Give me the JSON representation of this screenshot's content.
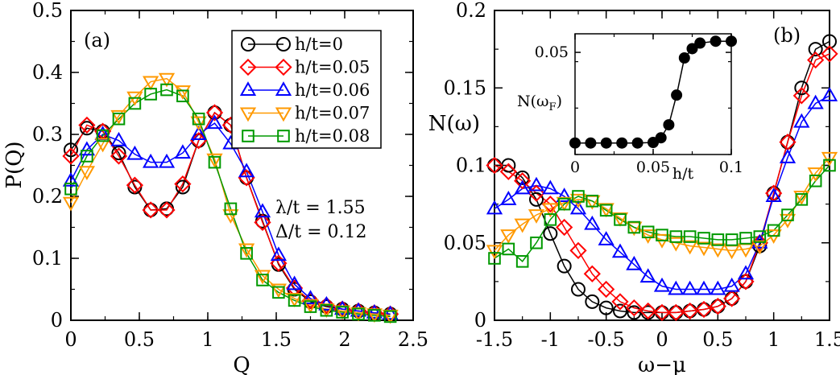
{
  "chart_data": [
    {
      "type": "line",
      "panel_label": "(a)",
      "xlabel": "Q",
      "ylabel": "P(Q)",
      "xlim": [
        0,
        2.5
      ],
      "ylim": [
        0,
        0.5
      ],
      "xticks": [
        "0",
        "0.5",
        "1",
        "1.5",
        "2",
        "2.5"
      ],
      "yticks": [
        "0",
        "0.1",
        "0.2",
        "0.3",
        "0.4",
        "0.5"
      ],
      "legend_position": "top-right",
      "annotations": [
        "λ/t = 1.55",
        "Δ/t = 0.12"
      ],
      "x": [
        0,
        0.117,
        0.233,
        0.35,
        0.467,
        0.583,
        0.7,
        0.817,
        0.933,
        1.05,
        1.167,
        1.283,
        1.4,
        1.517,
        1.633,
        1.75,
        1.867,
        1.983,
        2.1,
        2.217,
        2.333
      ],
      "series": [
        {
          "name": "h/t=0",
          "color": "#000000",
          "marker": "circle",
          "values": [
            0.275,
            0.31,
            0.305,
            0.27,
            0.215,
            0.178,
            0.18,
            0.215,
            0.29,
            0.335,
            0.315,
            0.23,
            0.16,
            0.09,
            0.05,
            0.03,
            0.022,
            0.018,
            0.015,
            0.012,
            0.01
          ]
        },
        {
          "name": "h/t=0.05",
          "color": "#ff0000",
          "marker": "diamond",
          "values": [
            0.265,
            0.315,
            0.305,
            0.265,
            0.218,
            0.178,
            0.178,
            0.22,
            0.29,
            0.335,
            0.315,
            0.23,
            0.158,
            0.092,
            0.052,
            0.032,
            0.024,
            0.018,
            0.015,
            0.012,
            0.01
          ]
        },
        {
          "name": "h/t=0.06",
          "color": "#0000ff",
          "marker": "triangle-up",
          "values": [
            0.225,
            0.275,
            0.3,
            0.29,
            0.268,
            0.255,
            0.255,
            0.27,
            0.3,
            0.318,
            0.285,
            0.24,
            0.175,
            0.105,
            0.058,
            0.035,
            0.025,
            0.018,
            0.015,
            0.012,
            0.01
          ]
        },
        {
          "name": "h/t=0.07",
          "color": "#ff9900",
          "marker": "triangle-down",
          "values": [
            0.19,
            0.24,
            0.285,
            0.33,
            0.36,
            0.385,
            0.39,
            0.37,
            0.32,
            0.26,
            0.17,
            0.115,
            0.072,
            0.05,
            0.035,
            0.025,
            0.018,
            0.015,
            0.012,
            0.01,
            0.008
          ]
        },
        {
          "name": "h/t=0.08",
          "color": "#009900",
          "marker": "square",
          "values": [
            0.212,
            0.265,
            0.298,
            0.325,
            0.35,
            0.365,
            0.372,
            0.362,
            0.325,
            0.255,
            0.18,
            0.108,
            0.065,
            0.045,
            0.032,
            0.022,
            0.016,
            0.013,
            0.01,
            0.008,
            0.006
          ]
        }
      ]
    },
    {
      "type": "line",
      "panel_label": "(b)",
      "xlabel": "ω−μ",
      "ylabel": "N(ω)",
      "xlim": [
        -1.5,
        1.5
      ],
      "ylim": [
        0,
        0.2
      ],
      "xticks": [
        "-1.5",
        "-1",
        "-0.5",
        "0",
        "0.5",
        "1",
        "1.5"
      ],
      "yticks": [
        "0",
        "0.05",
        "0.1",
        "0.15",
        "0.2"
      ],
      "x": [
        -1.5,
        -1.375,
        -1.25,
        -1.125,
        -1.0,
        -0.875,
        -0.75,
        -0.625,
        -0.5,
        -0.375,
        -0.25,
        -0.125,
        0,
        0.125,
        0.25,
        0.375,
        0.5,
        0.625,
        0.75,
        0.875,
        1.0,
        1.125,
        1.25,
        1.375,
        1.5
      ],
      "series": [
        {
          "name": "h/t=0",
          "color": "#000000",
          "marker": "circle",
          "values": [
            0.1,
            0.1,
            0.092,
            0.078,
            0.056,
            0.035,
            0.02,
            0.012,
            0.008,
            0.006,
            0.005,
            0.005,
            0.005,
            0.005,
            0.006,
            0.007,
            0.009,
            0.014,
            0.025,
            0.048,
            0.082,
            0.115,
            0.15,
            0.175,
            0.18
          ]
        },
        {
          "name": "h/t=0.05",
          "color": "#ff0000",
          "marker": "diamond",
          "values": [
            0.1,
            0.096,
            0.09,
            0.082,
            0.075,
            0.06,
            0.045,
            0.03,
            0.02,
            0.012,
            0.008,
            0.006,
            0.005,
            0.005,
            0.006,
            0.007,
            0.009,
            0.014,
            0.025,
            0.05,
            0.082,
            0.115,
            0.145,
            0.168,
            0.172
          ]
        },
        {
          "name": "h/t=0.06",
          "color": "#0000ff",
          "marker": "triangle-up",
          "values": [
            0.072,
            0.078,
            0.085,
            0.087,
            0.085,
            0.08,
            0.072,
            0.062,
            0.052,
            0.044,
            0.036,
            0.028,
            0.022,
            0.02,
            0.02,
            0.02,
            0.02,
            0.022,
            0.03,
            0.05,
            0.08,
            0.105,
            0.128,
            0.14,
            0.145
          ]
        },
        {
          "name": "h/t=0.07",
          "color": "#ff9900",
          "marker": "triangle-down",
          "values": [
            0.045,
            0.055,
            0.062,
            0.068,
            0.072,
            0.076,
            0.078,
            0.077,
            0.072,
            0.066,
            0.06,
            0.055,
            0.052,
            0.05,
            0.048,
            0.047,
            0.046,
            0.045,
            0.046,
            0.048,
            0.055,
            0.065,
            0.08,
            0.095,
            0.105
          ]
        },
        {
          "name": "h/t=0.08",
          "color": "#009900",
          "marker": "square",
          "values": [
            0.04,
            0.046,
            0.038,
            0.05,
            0.065,
            0.075,
            0.08,
            0.077,
            0.071,
            0.065,
            0.06,
            0.057,
            0.055,
            0.054,
            0.054,
            0.053,
            0.052,
            0.052,
            0.053,
            0.054,
            0.058,
            0.068,
            0.078,
            0.09,
            0.1
          ]
        }
      ]
    },
    {
      "type": "scatter",
      "inset_of": "(b)",
      "xlabel": "h/t",
      "ylabel": "N(ω",
      "ylabel_sub": "F",
      "ylabel_close": ")",
      "xlim": [
        0,
        0.1
      ],
      "ylim": [
        -0.005,
        0.06
      ],
      "xticks": [
        "0",
        "0.05",
        "0.1"
      ],
      "yticks": [
        "0.05"
      ],
      "color": "#000000",
      "marker": "filled-circle",
      "x": [
        0,
        0.01,
        0.02,
        0.03,
        0.04,
        0.05,
        0.055,
        0.06,
        0.065,
        0.07,
        0.075,
        0.08,
        0.09,
        0.1
      ],
      "values": [
        0.0012,
        0.0012,
        0.0012,
        0.0012,
        0.0012,
        0.0015,
        0.004,
        0.011,
        0.027,
        0.047,
        0.052,
        0.055,
        0.056,
        0.056
      ]
    }
  ]
}
